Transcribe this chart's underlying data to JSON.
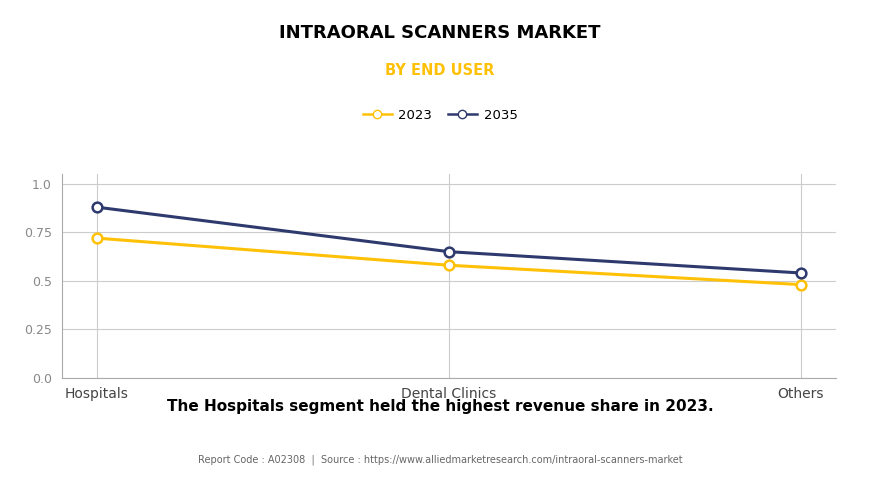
{
  "title": "INTRAORAL SCANNERS MARKET",
  "subtitle": "BY END USER",
  "categories": [
    "Hospitals",
    "Dental Clinics",
    "Others"
  ],
  "series": [
    {
      "label": "2023",
      "values": [
        0.72,
        0.58,
        0.48
      ],
      "color": "#FFC107",
      "marker": "o"
    },
    {
      "label": "2035",
      "values": [
        0.88,
        0.65,
        0.54
      ],
      "color": "#2E3A6E",
      "marker": "o"
    }
  ],
  "ylim": [
    0.0,
    1.05
  ],
  "yticks": [
    0.0,
    0.25,
    0.5,
    0.75,
    1.0
  ],
  "annotation": "The Hospitals segment held the highest revenue share in 2023.",
  "footer": "Report Code : A02308  |  Source : https://www.alliedmarketresearch.com/intraoral-scanners-market",
  "background_color": "#FFFFFF",
  "plot_bg_color": "#FFFFFF",
  "grid_color": "#CCCCCC",
  "title_color": "#000000",
  "subtitle_color": "#FFC107",
  "annotation_color": "#000000",
  "footer_color": "#666666"
}
